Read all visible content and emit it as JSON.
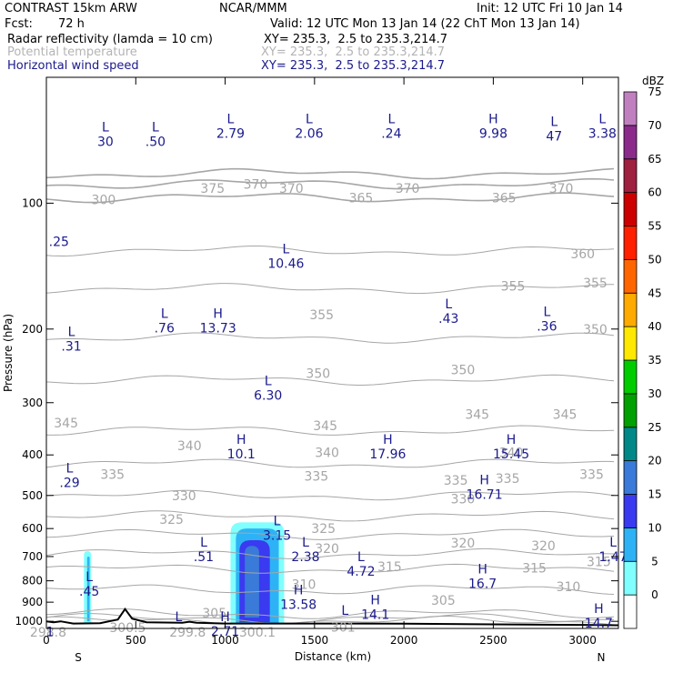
{
  "header": {
    "model": "CONTRAST 15km ARW",
    "org": "NCAR/MMM",
    "init": "Init: 12 UTC Fri 10 Jan 14",
    "fcst_label": "Fcst:",
    "fcst_value": "72 h",
    "valid": "Valid: 12 UTC Mon 13 Jan 14 (22 ChT Mon 13 Jan 14)",
    "field1": "Radar reflectivity (lamda = 10 cm)",
    "xy1": "XY= 235.3,  2.5 to 235.3,214.7",
    "field2": "Potential temperature",
    "xy2": "XY= 235.3,  2.5 to 235.3,214.7",
    "field3": "Horizontal wind speed",
    "xy3": "XY= 235.3,  2.5 to 235.3,214.7"
  },
  "colors": {
    "theta_contour": "#a6a6a6",
    "wind_label": "#1a1a8c",
    "terrain": "#000000",
    "refl_5": "#80ffff",
    "refl_10": "#2db3f5",
    "refl_15": "#3a3af0",
    "refl_20": "#3a7ad8"
  },
  "chart_data": {
    "type": "heatmap",
    "title": "Radar reflectivity (lamda = 10 cm)",
    "xlabel": "Distance (km)",
    "ylabel": "Pressure (hPa)",
    "xlim": [
      0,
      3200
    ],
    "ylim": [
      1040,
      50
    ],
    "y_scale": "log",
    "x_ticks": [
      0,
      500,
      1000,
      1500,
      2000,
      2500,
      3000
    ],
    "y_ticks": [
      100,
      200,
      300,
      400,
      500,
      600,
      700,
      800,
      900,
      1000
    ],
    "x_end_labels": [
      "S",
      "N"
    ],
    "grid": true,
    "colorbar": {
      "units": "dBZ",
      "levels": [
        0,
        5,
        10,
        15,
        20,
        25,
        30,
        35,
        40,
        45,
        50,
        55,
        60,
        65,
        70,
        75
      ],
      "colors": [
        "#ffffff",
        "#80ffff",
        "#2db3f5",
        "#3a3af0",
        "#3a7ad8",
        "#008888",
        "#00a000",
        "#00cc00",
        "#ffe800",
        "#ffaa00",
        "#ff6600",
        "#ff2000",
        "#cc0000",
        "#a02040",
        "#8c2a8c",
        "#c080c0"
      ]
    },
    "reflectivity_regions": [
      {
        "dbz": 5,
        "x": [
          210,
          250
        ],
        "p": [
          680,
          1010
        ]
      },
      {
        "dbz": 10,
        "x": [
          228,
          242
        ],
        "p": [
          700,
          1000
        ]
      },
      {
        "dbz": 5,
        "x": [
          1030,
          1330
        ],
        "p": [
          580,
          1015
        ]
      },
      {
        "dbz": 10,
        "x": [
          1060,
          1300
        ],
        "p": [
          600,
          1010
        ]
      },
      {
        "dbz": 15,
        "x": [
          1080,
          1250
        ],
        "p": [
          640,
          1005
        ]
      },
      {
        "dbz": 20,
        "x": [
          1110,
          1190
        ],
        "p": [
          660,
          980
        ]
      }
    ],
    "terrain": [
      [
        0,
        1000
      ],
      [
        40,
        1005
      ],
      [
        80,
        1000
      ],
      [
        150,
        1012
      ],
      [
        300,
        1010
      ],
      [
        400,
        990
      ],
      [
        440,
        935
      ],
      [
        480,
        985
      ],
      [
        560,
        1005
      ],
      [
        760,
        1008
      ],
      [
        800,
        1002
      ],
      [
        840,
        1008
      ],
      [
        1000,
        1012
      ],
      [
        1500,
        1012
      ],
      [
        2000,
        1013
      ],
      [
        2500,
        1017
      ],
      [
        3000,
        1020
      ],
      [
        3200,
        1022
      ]
    ],
    "theta_contours": [
      {
        "label": "375",
        "p": 85
      },
      {
        "label": "370",
        "p": 90
      },
      {
        "label": "365",
        "p": 97
      },
      {
        "label": "360",
        "p": 130
      },
      {
        "label": "355",
        "p": 160
      },
      {
        "label": "350",
        "p": 210
      },
      {
        "label": "345",
        "p": 265
      },
      {
        "label": "340",
        "p": 350
      },
      {
        "label": "335",
        "p": 420
      },
      {
        "label": "330",
        "p": 500
      },
      {
        "label": "325",
        "p": 560
      },
      {
        "label": "320",
        "p": 620
      },
      {
        "label": "315",
        "p": 690
      },
      {
        "label": "310",
        "p": 750
      },
      {
        "label": "305",
        "p": 840
      },
      {
        "label": "301",
        "p": 960
      },
      {
        "label": "300.5",
        "p": 985
      },
      {
        "label": "298.8",
        "p": 1000
      }
    ],
    "theta_labels": [
      {
        "text": "370",
        "x": 1170,
        "p": 90
      },
      {
        "text": "375",
        "x": 930,
        "p": 92
      },
      {
        "text": "370",
        "x": 1370,
        "p": 92
      },
      {
        "text": "365",
        "x": 1760,
        "p": 97
      },
      {
        "text": "370",
        "x": 2020,
        "p": 92
      },
      {
        "text": "365",
        "x": 2560,
        "p": 97
      },
      {
        "text": "370",
        "x": 2880,
        "p": 92
      },
      {
        "text": "300",
        "x": 320,
        "p": 98
      },
      {
        "text": "360",
        "x": 3000,
        "p": 132
      },
      {
        "text": "355",
        "x": 2610,
        "p": 158
      },
      {
        "text": "355",
        "x": 3070,
        "p": 155
      },
      {
        "text": "355",
        "x": 1540,
        "p": 185
      },
      {
        "text": "350",
        "x": 3070,
        "p": 200
      },
      {
        "text": "350",
        "x": 1520,
        "p": 255
      },
      {
        "text": "350",
        "x": 2330,
        "p": 250
      },
      {
        "text": "345",
        "x": 110,
        "p": 335
      },
      {
        "text": "345",
        "x": 1560,
        "p": 340
      },
      {
        "text": "345",
        "x": 2410,
        "p": 320
      },
      {
        "text": "345",
        "x": 2900,
        "p": 320
      },
      {
        "text": "340",
        "x": 800,
        "p": 380
      },
      {
        "text": "340",
        "x": 1570,
        "p": 395
      },
      {
        "text": "340",
        "x": 2600,
        "p": 395
      },
      {
        "text": "335",
        "x": 370,
        "p": 445
      },
      {
        "text": "335",
        "x": 1510,
        "p": 450
      },
      {
        "text": "335",
        "x": 2290,
        "p": 460
      },
      {
        "text": "335",
        "x": 2580,
        "p": 455
      },
      {
        "text": "335",
        "x": 3050,
        "p": 445
      },
      {
        "text": "330",
        "x": 770,
        "p": 500
      },
      {
        "text": "330",
        "x": 2330,
        "p": 510
      },
      {
        "text": "325",
        "x": 700,
        "p": 570
      },
      {
        "text": "325",
        "x": 1550,
        "p": 600
      },
      {
        "text": "320",
        "x": 1570,
        "p": 670
      },
      {
        "text": "320",
        "x": 2330,
        "p": 650
      },
      {
        "text": "320",
        "x": 2780,
        "p": 660
      },
      {
        "text": "315",
        "x": 1920,
        "p": 740
      },
      {
        "text": "315",
        "x": 2730,
        "p": 745
      },
      {
        "text": "315",
        "x": 3090,
        "p": 720
      },
      {
        "text": "310",
        "x": 1440,
        "p": 815
      },
      {
        "text": "310",
        "x": 2920,
        "p": 825
      },
      {
        "text": "305",
        "x": 2220,
        "p": 890
      },
      {
        "text": "305",
        "x": 940,
        "p": 955
      },
      {
        "text": "301",
        "x": 1660,
        "p": 1032
      },
      {
        "text": "300.5",
        "x": 455,
        "p": 1035
      },
      {
        "text": "298.8",
        "x": 10,
        "p": 1062
      },
      {
        "text": "299.8",
        "x": 790,
        "p": 1062
      },
      {
        "text": "300.1",
        "x": 1180,
        "p": 1062
      }
    ],
    "wind_extrema": [
      {
        "type": "L",
        "value": "30",
        "x": 330,
        "p": 68
      },
      {
        "type": "L",
        "value": ".50",
        "x": 610,
        "p": 68
      },
      {
        "type": "L",
        "value": "2.79",
        "x": 1030,
        "p": 65
      },
      {
        "type": "L",
        "value": "2.06",
        "x": 1470,
        "p": 65
      },
      {
        "type": "L",
        "value": ".24",
        "x": 1930,
        "p": 65
      },
      {
        "type": "H",
        "value": "9.98",
        "x": 2500,
        "p": 65
      },
      {
        "type": "L",
        "value": "47",
        "x": 2840,
        "p": 66
      },
      {
        "type": "L",
        "value": "3.38",
        "x": 3110,
        "p": 65
      },
      {
        "type": "",
        "value": ".25",
        "x": 70,
        "p": 118
      },
      {
        "type": "L",
        "value": "10.46",
        "x": 1340,
        "p": 133
      },
      {
        "type": "L",
        "value": ".43",
        "x": 2250,
        "p": 180
      },
      {
        "type": "L",
        "value": ".36",
        "x": 2800,
        "p": 188
      },
      {
        "type": "L",
        "value": ".76",
        "x": 660,
        "p": 190
      },
      {
        "type": "H",
        "value": "13.73",
        "x": 960,
        "p": 190
      },
      {
        "type": "L",
        "value": ".31",
        "x": 140,
        "p": 210
      },
      {
        "type": "L",
        "value": "6.30",
        "x": 1240,
        "p": 275
      },
      {
        "type": "H",
        "value": "10.1",
        "x": 1090,
        "p": 380
      },
      {
        "type": "H",
        "value": "17.96",
        "x": 1910,
        "p": 380
      },
      {
        "type": "H",
        "value": "15.45",
        "x": 2600,
        "p": 380
      },
      {
        "type": "L",
        "value": ".29",
        "x": 130,
        "p": 445
      },
      {
        "type": "H",
        "value": "16.71",
        "x": 2450,
        "p": 475
      },
      {
        "type": "L",
        "value": "3.15",
        "x": 1290,
        "p": 595
      },
      {
        "type": "L",
        "value": ".51",
        "x": 880,
        "p": 670
      },
      {
        "type": "L",
        "value": "2.38",
        "x": 1450,
        "p": 670
      },
      {
        "type": "L",
        "value": "4.72",
        "x": 1760,
        "p": 725
      },
      {
        "type": "H",
        "value": "16.7",
        "x": 2440,
        "p": 775
      },
      {
        "type": "L",
        "value": "1.47",
        "x": 3170,
        "p": 670
      },
      {
        "type": "L",
        "value": ".45",
        "x": 240,
        "p": 810
      },
      {
        "type": "H",
        "value": "13.58",
        "x": 1410,
        "p": 870
      },
      {
        "type": "H",
        "value": "14.1",
        "x": 1840,
        "p": 920
      },
      {
        "type": "H",
        "value": "14.7",
        "x": 3090,
        "p": 965
      },
      {
        "type": "L",
        "value": "",
        "x": 1670,
        "p": 975
      },
      {
        "type": "H",
        "value": "2.71",
        "x": 1000,
        "p": 1010
      },
      {
        "type": "L",
        "value": "",
        "x": 740,
        "p": 1010
      },
      {
        "type": "",
        "value": "1",
        "x": 20,
        "p": 1012
      }
    ]
  }
}
